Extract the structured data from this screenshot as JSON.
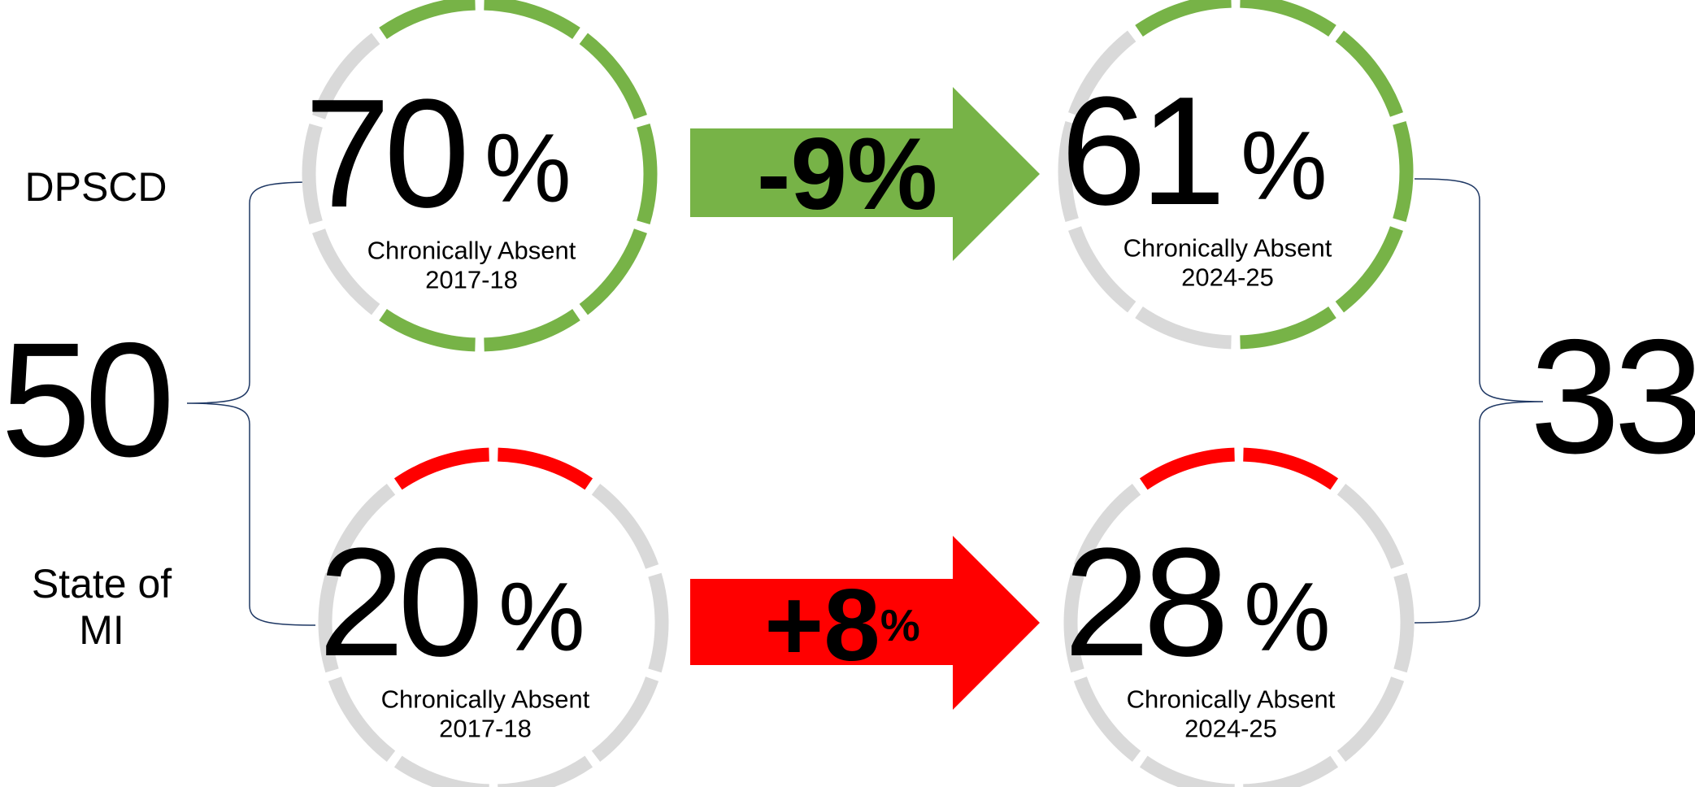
{
  "rows": [
    {
      "label_lines": [
        "DPSCD"
      ],
      "color": "#77b347",
      "before": {
        "value": 70,
        "unit": "%",
        "caption": "Chronically Absent",
        "year": "2017-18"
      },
      "change": {
        "label": "-9",
        "unit": "%"
      },
      "after": {
        "value": 61,
        "unit": "%",
        "caption": "Chronically Absent",
        "year": "2024-25"
      }
    },
    {
      "label_lines": [
        "State of",
        "MI"
      ],
      "color": "#ff0000",
      "before": {
        "value": 20,
        "unit": "%",
        "caption": "Chronically Absent",
        "year": "2017-18"
      },
      "change": {
        "label": "+8",
        "unit": "%"
      },
      "after": {
        "value": 28,
        "unit": "%",
        "caption": "Chronically Absent",
        "year": "2024-25"
      }
    }
  ],
  "gap_before": 50,
  "gap_after": 33,
  "empty_color": "#d9d9d9"
}
